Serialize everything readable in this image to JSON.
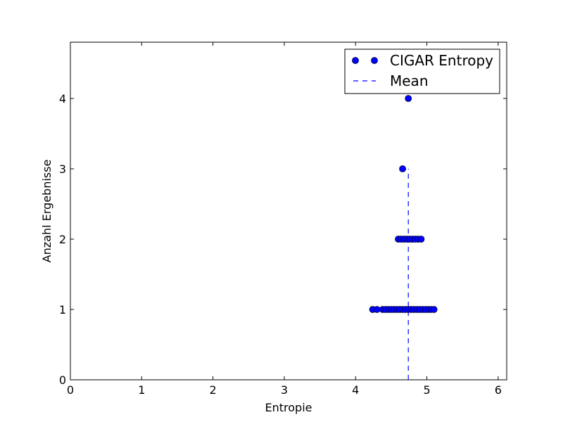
{
  "chart_data": {
    "type": "scatter",
    "title": "",
    "xlabel": "Entropie",
    "ylabel": "Anzahl Ergebnisse",
    "xlim": [
      0,
      6.12
    ],
    "ylim": [
      0,
      4.8
    ],
    "xticks": [
      "0",
      "1",
      "2",
      "3",
      "4",
      "5",
      "6"
    ],
    "yticks": [
      "0",
      "1",
      "2",
      "3",
      "4"
    ],
    "grid": false,
    "legend_position": "top-right",
    "colors": {
      "marker_fill": "#0000ff",
      "marker_edge": "#000033",
      "mean_line": "#0000ff",
      "axes": "#000000"
    },
    "series": [
      {
        "name": "CIGAR Entropy",
        "kind": "markers",
        "points": [
          [
            4.24,
            1
          ],
          [
            4.3,
            1
          ],
          [
            4.38,
            1
          ],
          [
            4.42,
            1
          ],
          [
            4.46,
            1
          ],
          [
            4.5,
            1
          ],
          [
            4.54,
            1
          ],
          [
            4.58,
            1
          ],
          [
            4.62,
            1
          ],
          [
            4.66,
            1
          ],
          [
            4.7,
            1
          ],
          [
            4.74,
            1
          ],
          [
            4.78,
            1
          ],
          [
            4.82,
            1
          ],
          [
            4.86,
            1
          ],
          [
            4.9,
            1
          ],
          [
            4.94,
            1
          ],
          [
            4.98,
            1
          ],
          [
            5.02,
            1
          ],
          [
            5.06,
            1
          ],
          [
            5.1,
            1
          ],
          [
            4.6,
            2
          ],
          [
            4.64,
            2
          ],
          [
            4.68,
            2
          ],
          [
            4.72,
            2
          ],
          [
            4.76,
            2
          ],
          [
            4.8,
            2
          ],
          [
            4.84,
            2
          ],
          [
            4.88,
            2
          ],
          [
            4.92,
            2
          ],
          [
            4.66,
            3
          ],
          [
            4.74,
            4
          ]
        ]
      },
      {
        "name": "Mean",
        "kind": "vline",
        "x": 4.74,
        "y_range": [
          0,
          3
        ]
      }
    ]
  }
}
